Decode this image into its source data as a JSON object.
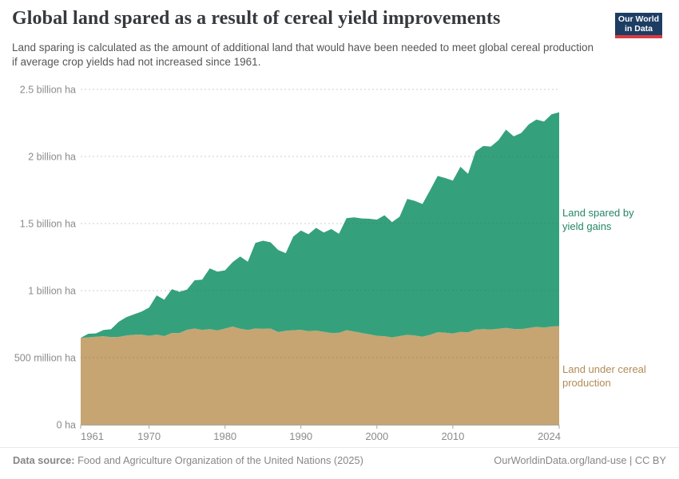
{
  "header": {
    "title": "Global land spared as a result of cereal yield improvements",
    "subtitle": "Land sparing is calculated as the amount of additional land that would have been needed to meet global cereal production if average crop yields had not increased since 1961.",
    "logo": {
      "line1": "Our World",
      "line2": "in Data",
      "bg_color": "#1d3d63",
      "accent_color": "#d93b43"
    }
  },
  "chart_data": {
    "type": "area",
    "stacked": true,
    "title": "Global land spared as a result of cereal yield improvements",
    "unit": "hectares",
    "values_unit": "billion ha",
    "grid": "dashed",
    "legend_position": "right-annotations",
    "ylim": [
      0,
      2.5
    ],
    "xlim": [
      1961,
      2024
    ],
    "x": [
      1961,
      1962,
      1963,
      1964,
      1965,
      1966,
      1967,
      1968,
      1969,
      1970,
      1971,
      1972,
      1973,
      1974,
      1975,
      1976,
      1977,
      1978,
      1979,
      1980,
      1981,
      1982,
      1983,
      1984,
      1985,
      1986,
      1987,
      1988,
      1989,
      1990,
      1991,
      1992,
      1993,
      1994,
      1995,
      1996,
      1997,
      1998,
      1999,
      2000,
      2001,
      2002,
      2003,
      2004,
      2005,
      2006,
      2007,
      2008,
      2009,
      2010,
      2011,
      2012,
      2013,
      2014,
      2015,
      2016,
      2017,
      2018,
      2019,
      2020,
      2021,
      2022,
      2023,
      2024
    ],
    "series": [
      {
        "name": "Land under cereal production",
        "color": "#C6A572",
        "label_color": "#B28B55",
        "values": [
          0.648,
          0.651,
          0.656,
          0.66,
          0.653,
          0.655,
          0.665,
          0.67,
          0.672,
          0.663,
          0.672,
          0.661,
          0.684,
          0.684,
          0.708,
          0.717,
          0.707,
          0.713,
          0.703,
          0.717,
          0.732,
          0.716,
          0.707,
          0.718,
          0.715,
          0.717,
          0.691,
          0.7,
          0.705,
          0.708,
          0.697,
          0.702,
          0.693,
          0.684,
          0.685,
          0.705,
          0.695,
          0.684,
          0.674,
          0.663,
          0.66,
          0.651,
          0.661,
          0.67,
          0.665,
          0.656,
          0.67,
          0.69,
          0.686,
          0.68,
          0.692,
          0.689,
          0.71,
          0.713,
          0.71,
          0.716,
          0.722,
          0.714,
          0.713,
          0.721,
          0.73,
          0.725,
          0.732,
          0.735
        ]
      },
      {
        "name": "Land spared by yield gains",
        "color": "#34A17C",
        "label_color": "#268569",
        "values": [
          0.0,
          0.027,
          0.025,
          0.046,
          0.059,
          0.112,
          0.136,
          0.153,
          0.171,
          0.21,
          0.292,
          0.271,
          0.326,
          0.307,
          0.3,
          0.36,
          0.375,
          0.453,
          0.438,
          0.434,
          0.48,
          0.538,
          0.508,
          0.638,
          0.657,
          0.643,
          0.612,
          0.579,
          0.698,
          0.74,
          0.723,
          0.766,
          0.74,
          0.775,
          0.738,
          0.835,
          0.851,
          0.854,
          0.862,
          0.866,
          0.902,
          0.859,
          0.89,
          1.014,
          1.004,
          0.99,
          1.079,
          1.165,
          1.153,
          1.14,
          1.231,
          1.181,
          1.327,
          1.365,
          1.364,
          1.404,
          1.478,
          1.436,
          1.462,
          1.519,
          1.545,
          1.535,
          1.583,
          1.595
        ]
      }
    ],
    "y_ticks": [
      {
        "value": 0,
        "label": "0 ha"
      },
      {
        "value": 0.5,
        "label": "500 million ha"
      },
      {
        "value": 1,
        "label": "1 billion ha"
      },
      {
        "value": 1.5,
        "label": "1.5 billion ha"
      },
      {
        "value": 2,
        "label": "2 billion ha"
      },
      {
        "value": 2.5,
        "label": "2.5 billion ha"
      }
    ],
    "x_ticks": [
      {
        "value": 1961,
        "label": "1961",
        "align": "start"
      },
      {
        "value": 1970,
        "label": "1970",
        "align": "middle"
      },
      {
        "value": 1980,
        "label": "1980",
        "align": "middle"
      },
      {
        "value": 1990,
        "label": "1990",
        "align": "middle"
      },
      {
        "value": 2000,
        "label": "2000",
        "align": "middle"
      },
      {
        "value": 2010,
        "label": "2010",
        "align": "middle"
      },
      {
        "value": 2024,
        "label": "2024",
        "align": "end"
      }
    ]
  },
  "footer": {
    "source_label": "Data source:",
    "source_value": "Food and Agriculture Organization of the United Nations (2025)",
    "credit": "OurWorldinData.org/land-use | CC BY"
  }
}
